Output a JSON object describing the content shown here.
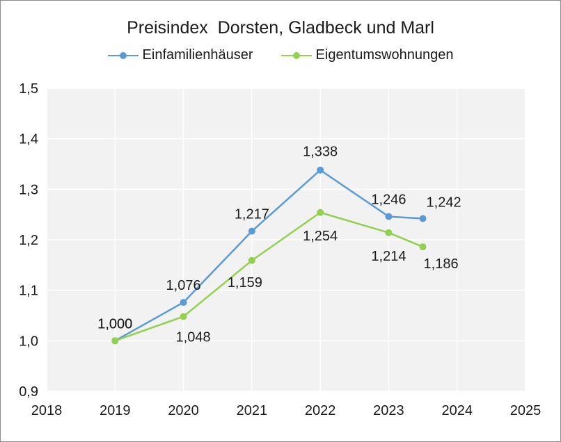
{
  "chart_data": {
    "type": "line",
    "title": "Preisindex  Dorsten, Gladbeck und Marl",
    "xlim": [
      2018,
      2025
    ],
    "ylim": [
      0.9,
      1.5
    ],
    "x_ticks": [
      "2018",
      "2019",
      "2020",
      "2021",
      "2022",
      "2023",
      "2024",
      "2025"
    ],
    "y_ticks": [
      "0,9",
      "1,0",
      "1,1",
      "1,2",
      "1,3",
      "1,4",
      "1,5"
    ],
    "grid": true,
    "legend_position": "top",
    "series": [
      {
        "name": "Einfamilienhäuser",
        "color": "#5b9bd5",
        "x": [
          2019,
          2020,
          2021,
          2022,
          2023,
          2023.5
        ],
        "values": [
          1.0,
          1.076,
          1.217,
          1.338,
          1.246,
          1.242
        ],
        "labels": [
          "1,000",
          "1,076",
          "1,217",
          "1,338",
          "1,246",
          "1,242"
        ]
      },
      {
        "name": "Eigentumswohnungen",
        "color": "#92d050",
        "x": [
          2019,
          2020,
          2021,
          2022,
          2023,
          2023.5
        ],
        "values": [
          1.0,
          1.048,
          1.159,
          1.254,
          1.214,
          1.186
        ],
        "labels": [
          "1,000",
          "1,048",
          "1,159",
          "1,254",
          "1,214",
          "1,186"
        ]
      }
    ]
  }
}
